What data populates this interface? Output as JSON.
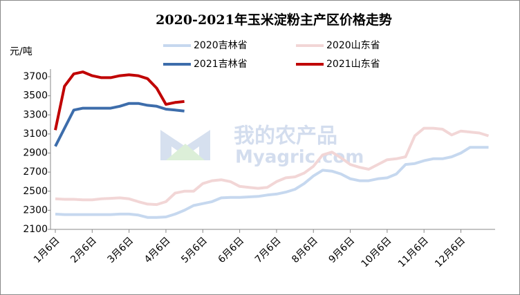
{
  "chart_data": {
    "type": "line",
    "title": "2020-2021年玉米淀粉主产区价格走势",
    "y_label": "元/吨",
    "watermark": [
      "我的农产品",
      "Myagric.com"
    ],
    "categories": [
      "1月6日",
      null,
      null,
      null,
      "2月6日",
      null,
      null,
      null,
      "3月6日",
      null,
      null,
      null,
      "4月6日",
      null,
      null,
      null,
      "5月6日",
      null,
      null,
      null,
      "6月6日",
      null,
      null,
      null,
      "7月6日",
      null,
      null,
      null,
      "8月6日",
      null,
      null,
      null,
      "9月6日",
      null,
      null,
      null,
      "10月6日",
      null,
      null,
      null,
      "11月6日",
      null,
      null,
      null,
      "12月6日",
      null,
      null,
      null
    ],
    "series": [
      {
        "name": "2020吉林省",
        "color": "#c6d8ef",
        "values": [
          2260,
          2255,
          2255,
          2255,
          2255,
          2255,
          2255,
          2260,
          2260,
          2250,
          2225,
          2225,
          2230,
          2260,
          2300,
          2350,
          2370,
          2390,
          2430,
          2435,
          2435,
          2440,
          2445,
          2460,
          2470,
          2490,
          2520,
          2580,
          2660,
          2720,
          2710,
          2680,
          2630,
          2610,
          2610,
          2630,
          2640,
          2680,
          2780,
          2790,
          2820,
          2840,
          2840,
          2860,
          2900,
          2960,
          2960,
          2960
        ]
      },
      {
        "name": "2020山东省",
        "color": "#f2d6d6",
        "values": [
          2420,
          2415,
          2415,
          2410,
          2410,
          2420,
          2425,
          2430,
          2420,
          2390,
          2365,
          2360,
          2390,
          2480,
          2500,
          2500,
          2580,
          2610,
          2620,
          2600,
          2550,
          2540,
          2530,
          2540,
          2600,
          2640,
          2650,
          2690,
          2760,
          2880,
          2910,
          2850,
          2780,
          2750,
          2730,
          2780,
          2830,
          2840,
          2860,
          3080,
          3160,
          3160,
          3150,
          3090,
          3130,
          3120,
          3110,
          3080
        ]
      },
      {
        "name": "2021吉林省",
        "color": "#3d6dab",
        "values": [
          2970,
          3160,
          3350,
          3370,
          3370,
          3370,
          3370,
          3390,
          3420,
          3420,
          3400,
          3390,
          3360,
          3350,
          3340,
          null,
          null,
          null,
          null,
          null,
          null,
          null,
          null,
          null,
          null,
          null,
          null,
          null,
          null,
          null,
          null,
          null,
          null,
          null,
          null,
          null,
          null,
          null,
          null,
          null,
          null,
          null,
          null,
          null,
          null,
          null,
          null,
          null
        ]
      },
      {
        "name": "2021山东省",
        "color": "#c00000",
        "values": [
          3140,
          3600,
          3730,
          3750,
          3710,
          3690,
          3690,
          3710,
          3720,
          3710,
          3680,
          3580,
          3410,
          3430,
          3440,
          null,
          null,
          null,
          null,
          null,
          null,
          null,
          null,
          null,
          null,
          null,
          null,
          null,
          null,
          null,
          null,
          null,
          null,
          null,
          null,
          null,
          null,
          null,
          null,
          null,
          null,
          null,
          null,
          null,
          null,
          null,
          null,
          null
        ]
      }
    ],
    "ylim": [
      2100,
      3800
    ],
    "yticks": [
      2100,
      2300,
      2500,
      2700,
      2900,
      3100,
      3300,
      3500,
      3700
    ]
  }
}
